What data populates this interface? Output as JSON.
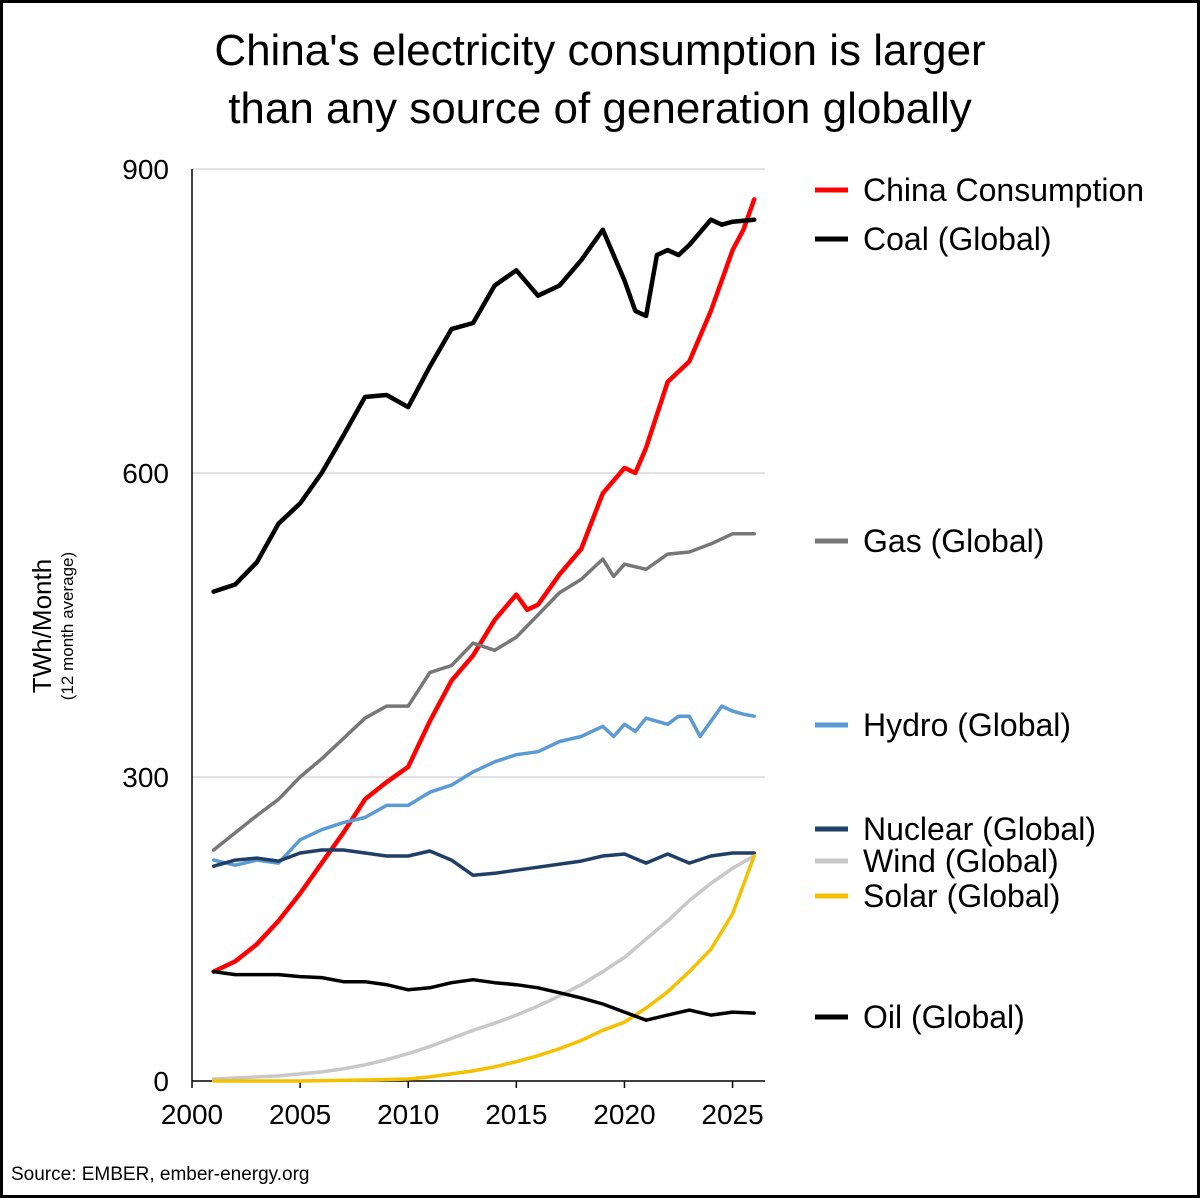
{
  "chart_data": {
    "type": "line",
    "title": [
      "China's electricity consumption is larger",
      "than any source of generation globally"
    ],
    "ylabel": "TWh/Month",
    "ylabel_sub": "(12 month average)",
    "xlabel": "",
    "ylim": [
      0,
      900
    ],
    "xlim": [
      2000,
      2026.5
    ],
    "yticks": [
      0,
      300,
      600,
      900
    ],
    "xticks": [
      2000,
      2005,
      2010,
      2015,
      2020,
      2025
    ],
    "grid": "horizontal",
    "legend_position": "right",
    "source": "Source: EMBER, ember-energy.org",
    "series": [
      {
        "name": "China Consumption",
        "color": "#ff0000",
        "points": [
          [
            2001,
            108
          ],
          [
            2002,
            118
          ],
          [
            2003,
            135
          ],
          [
            2004,
            158
          ],
          [
            2005,
            185
          ],
          [
            2006,
            215
          ],
          [
            2007,
            245
          ],
          [
            2008,
            278
          ],
          [
            2009,
            295
          ],
          [
            2010,
            310
          ],
          [
            2011,
            355
          ],
          [
            2012,
            395
          ],
          [
            2013,
            420
          ],
          [
            2014,
            455
          ],
          [
            2015,
            480
          ],
          [
            2015.5,
            465
          ],
          [
            2016,
            470
          ],
          [
            2017,
            500
          ],
          [
            2018,
            525
          ],
          [
            2019,
            580
          ],
          [
            2020,
            605
          ],
          [
            2020.5,
            600
          ],
          [
            2021,
            625
          ],
          [
            2022,
            690
          ],
          [
            2023,
            710
          ],
          [
            2024,
            760
          ],
          [
            2025,
            820
          ],
          [
            2025.5,
            840
          ],
          [
            2026,
            870
          ]
        ]
      },
      {
        "name": "Coal (Global)",
        "color": "#000000",
        "points": [
          [
            2001,
            483
          ],
          [
            2002,
            490
          ],
          [
            2003,
            512
          ],
          [
            2004,
            550
          ],
          [
            2005,
            570
          ],
          [
            2006,
            600
          ],
          [
            2007,
            637
          ],
          [
            2008,
            675
          ],
          [
            2009,
            677
          ],
          [
            2010,
            665
          ],
          [
            2011,
            705
          ],
          [
            2012,
            742
          ],
          [
            2013,
            748
          ],
          [
            2014,
            785
          ],
          [
            2015,
            800
          ],
          [
            2016,
            775
          ],
          [
            2017,
            785
          ],
          [
            2018,
            810
          ],
          [
            2019,
            840
          ],
          [
            2020,
            790
          ],
          [
            2020.5,
            760
          ],
          [
            2021,
            755
          ],
          [
            2021.5,
            815
          ],
          [
            2022,
            820
          ],
          [
            2022.5,
            815
          ],
          [
            2023,
            825
          ],
          [
            2024,
            850
          ],
          [
            2024.5,
            845
          ],
          [
            2025,
            848
          ],
          [
            2026,
            850
          ]
        ]
      },
      {
        "name": "Gas (Global)",
        "color": "#777777",
        "points": [
          [
            2001,
            228
          ],
          [
            2002,
            245
          ],
          [
            2003,
            262
          ],
          [
            2004,
            278
          ],
          [
            2005,
            300
          ],
          [
            2006,
            318
          ],
          [
            2007,
            338
          ],
          [
            2008,
            358
          ],
          [
            2009,
            370
          ],
          [
            2010,
            370
          ],
          [
            2011,
            403
          ],
          [
            2012,
            410
          ],
          [
            2013,
            432
          ],
          [
            2014,
            425
          ],
          [
            2015,
            438
          ],
          [
            2016,
            460
          ],
          [
            2017,
            482
          ],
          [
            2018,
            495
          ],
          [
            2019,
            515
          ],
          [
            2019.5,
            498
          ],
          [
            2020,
            510
          ],
          [
            2021,
            505
          ],
          [
            2022,
            520
          ],
          [
            2023,
            522
          ],
          [
            2024,
            530
          ],
          [
            2025,
            540
          ],
          [
            2026,
            540
          ]
        ]
      },
      {
        "name": "Hydro (Global)",
        "color": "#5b9bd5",
        "points": [
          [
            2001,
            218
          ],
          [
            2002,
            213
          ],
          [
            2003,
            218
          ],
          [
            2004,
            215
          ],
          [
            2005,
            238
          ],
          [
            2006,
            248
          ],
          [
            2007,
            255
          ],
          [
            2008,
            260
          ],
          [
            2009,
            272
          ],
          [
            2010,
            272
          ],
          [
            2011,
            285
          ],
          [
            2012,
            292
          ],
          [
            2013,
            305
          ],
          [
            2014,
            315
          ],
          [
            2015,
            322
          ],
          [
            2016,
            325
          ],
          [
            2017,
            335
          ],
          [
            2018,
            340
          ],
          [
            2019,
            350
          ],
          [
            2019.5,
            340
          ],
          [
            2020,
            352
          ],
          [
            2020.5,
            345
          ],
          [
            2021,
            358
          ],
          [
            2022,
            352
          ],
          [
            2022.5,
            360
          ],
          [
            2023,
            360
          ],
          [
            2023.5,
            340
          ],
          [
            2024,
            355
          ],
          [
            2024.5,
            370
          ],
          [
            2025,
            365
          ],
          [
            2025.5,
            362
          ],
          [
            2026,
            360
          ]
        ]
      },
      {
        "name": "Nuclear (Global)",
        "color": "#1f3f66",
        "points": [
          [
            2001,
            212
          ],
          [
            2002,
            218
          ],
          [
            2003,
            220
          ],
          [
            2004,
            217
          ],
          [
            2005,
            225
          ],
          [
            2006,
            228
          ],
          [
            2007,
            228
          ],
          [
            2008,
            225
          ],
          [
            2009,
            222
          ],
          [
            2010,
            222
          ],
          [
            2011,
            227
          ],
          [
            2012,
            218
          ],
          [
            2013,
            203
          ],
          [
            2014,
            205
          ],
          [
            2015,
            208
          ],
          [
            2016,
            211
          ],
          [
            2017,
            214
          ],
          [
            2018,
            217
          ],
          [
            2019,
            222
          ],
          [
            2020,
            224
          ],
          [
            2021,
            215
          ],
          [
            2022,
            224
          ],
          [
            2023,
            215
          ],
          [
            2024,
            222
          ],
          [
            2025,
            225
          ],
          [
            2026,
            225
          ]
        ]
      },
      {
        "name": "Wind (Global)",
        "color": "#c8c8c8",
        "points": [
          [
            2001,
            2
          ],
          [
            2002,
            3
          ],
          [
            2003,
            4
          ],
          [
            2004,
            5
          ],
          [
            2005,
            7
          ],
          [
            2006,
            9
          ],
          [
            2007,
            12
          ],
          [
            2008,
            16
          ],
          [
            2009,
            21
          ],
          [
            2010,
            27
          ],
          [
            2011,
            34
          ],
          [
            2012,
            42
          ],
          [
            2013,
            50
          ],
          [
            2014,
            57
          ],
          [
            2015,
            65
          ],
          [
            2016,
            74
          ],
          [
            2017,
            84
          ],
          [
            2018,
            95
          ],
          [
            2019,
            108
          ],
          [
            2020,
            122
          ],
          [
            2021,
            140
          ],
          [
            2022,
            158
          ],
          [
            2023,
            178
          ],
          [
            2024,
            195
          ],
          [
            2025,
            210
          ],
          [
            2026,
            222
          ]
        ]
      },
      {
        "name": "Solar (Global)",
        "color": "#f5c000",
        "points": [
          [
            2001,
            0
          ],
          [
            2005,
            0
          ],
          [
            2008,
            1
          ],
          [
            2010,
            2
          ],
          [
            2011,
            4
          ],
          [
            2012,
            7
          ],
          [
            2013,
            10
          ],
          [
            2014,
            14
          ],
          [
            2015,
            19
          ],
          [
            2016,
            25
          ],
          [
            2017,
            32
          ],
          [
            2018,
            40
          ],
          [
            2019,
            50
          ],
          [
            2020,
            58
          ],
          [
            2021,
            72
          ],
          [
            2022,
            88
          ],
          [
            2023,
            108
          ],
          [
            2024,
            130
          ],
          [
            2025,
            165
          ],
          [
            2026,
            222
          ]
        ]
      },
      {
        "name": "Oil (Global)",
        "color": "#000000",
        "points": [
          [
            2001,
            108
          ],
          [
            2002,
            105
          ],
          [
            2003,
            105
          ],
          [
            2004,
            105
          ],
          [
            2005,
            103
          ],
          [
            2006,
            102
          ],
          [
            2007,
            98
          ],
          [
            2008,
            98
          ],
          [
            2009,
            95
          ],
          [
            2010,
            90
          ],
          [
            2011,
            92
          ],
          [
            2012,
            97
          ],
          [
            2013,
            100
          ],
          [
            2014,
            97
          ],
          [
            2015,
            95
          ],
          [
            2016,
            92
          ],
          [
            2017,
            87
          ],
          [
            2018,
            82
          ],
          [
            2019,
            76
          ],
          [
            2020,
            68
          ],
          [
            2021,
            60
          ],
          [
            2022,
            65
          ],
          [
            2023,
            70
          ],
          [
            2024,
            65
          ],
          [
            2025,
            68
          ],
          [
            2026,
            67
          ]
        ]
      }
    ]
  }
}
